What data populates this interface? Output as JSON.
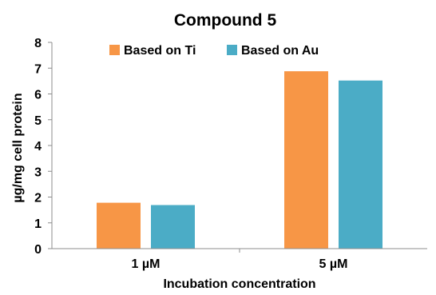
{
  "chart_data": {
    "type": "bar",
    "title": "Compound  5",
    "xlabel": "Incubation concentration",
    "ylabel": "µg/mg cell protein",
    "categories": [
      "1 µM",
      "5 µM"
    ],
    "series": [
      {
        "name": "Based on Ti",
        "values": [
          1.78,
          6.88
        ],
        "color": "#F79646"
      },
      {
        "name": "Based on Au",
        "values": [
          1.69,
          6.52
        ],
        "color": "#4BACC6"
      }
    ],
    "ylim": [
      0,
      8
    ],
    "yticks": [
      "0",
      "1",
      "2",
      "3",
      "4",
      "5",
      "6",
      "7",
      "8"
    ],
    "grid": false,
    "legend": "top-center"
  }
}
